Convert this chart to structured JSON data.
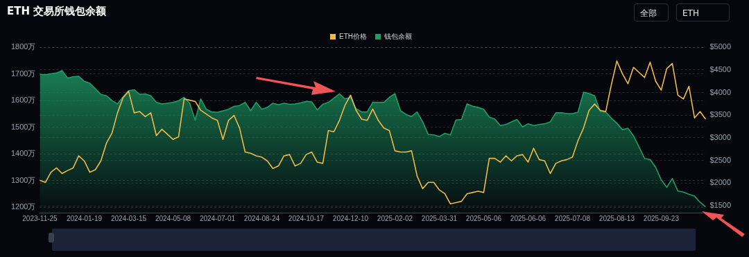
{
  "chart_data": {
    "type": "area",
    "title": "ETH 交易所钱包余额",
    "annotations": [
      "全部",
      "ETH"
    ],
    "categories": [
      "2023-11-25",
      null,
      null,
      null,
      null,
      null,
      null,
      null,
      "2024-01-19",
      null,
      null,
      null,
      null,
      null,
      null,
      null,
      "2024-03-15",
      null,
      null,
      null,
      null,
      null,
      null,
      null,
      "2024-05-08",
      null,
      null,
      null,
      null,
      null,
      null,
      null,
      "2024-07-01",
      null,
      null,
      null,
      null,
      null,
      null,
      null,
      "2024-08-24",
      null,
      null,
      null,
      null,
      null,
      null,
      null,
      "2024-10-17",
      null,
      null,
      null,
      null,
      null,
      null,
      null,
      "2024-12-10",
      null,
      null,
      null,
      null,
      null,
      null,
      null,
      "2025-02-02",
      null,
      null,
      null,
      null,
      null,
      null,
      null,
      "2025-03-31",
      null,
      null,
      null,
      null,
      null,
      null,
      null,
      "2025-05-06",
      null,
      null,
      null,
      null,
      null,
      null,
      null,
      "2025-06-06",
      null,
      null,
      null,
      null,
      null,
      null,
      null,
      "2025-07-08",
      null,
      null,
      null,
      null,
      null,
      null,
      null,
      "2025-08-13",
      null,
      null,
      null,
      null,
      null,
      null,
      null,
      "2025-09-23",
      null,
      null,
      null,
      null,
      null,
      null,
      null,
      null
    ],
    "series": [
      {
        "name": "ETH价格",
        "type": "line",
        "axis": "y2",
        "color": "#f0ba45",
        "values": [
          2063,
          2018,
          2241,
          2336,
          2213,
          2280,
          2336,
          2603,
          2492,
          2241,
          2297,
          2492,
          2882,
          3105,
          3551,
          3885,
          4025,
          3551,
          3579,
          3467,
          3551,
          3049,
          3188,
          3077,
          2966,
          3021,
          3857,
          3830,
          3802,
          3607,
          3523,
          3439,
          3384,
          2966,
          3384,
          3495,
          3216,
          2687,
          2659,
          2603,
          2575,
          2492,
          2325,
          2380,
          2603,
          2631,
          2380,
          2436,
          2631,
          2687,
          2464,
          2436,
          3161,
          3133,
          3384,
          3718,
          3941,
          3607,
          3411,
          3384,
          3634,
          3384,
          3216,
          3161,
          2715,
          2687,
          2687,
          2715,
          2157,
          1879,
          2018,
          2018,
          1851,
          1767,
          1544,
          1572,
          1600,
          1767,
          1795,
          1823,
          1795,
          2547,
          2547,
          2464,
          2603,
          2492,
          2603,
          2631,
          2464,
          2770,
          2520,
          2492,
          2213,
          2436,
          2492,
          2520,
          2575,
          2938,
          3216,
          3607,
          3746,
          3607,
          3579,
          4164,
          4693,
          4415,
          4192,
          4554,
          4443,
          4331,
          4666,
          4248,
          4052,
          4526,
          4638,
          3941,
          3857,
          4136,
          3439,
          3579,
          3411
        ]
      },
      {
        "name": "钱包余额",
        "color": "#1e9e66",
        "values": [
          1698,
          1697,
          1700,
          1703,
          1712,
          1684,
          1689,
          1691,
          1672,
          1665,
          1644,
          1623,
          1618,
          1600,
          1587,
          1614,
          1637,
          1640,
          1623,
          1625,
          1618,
          1593,
          1587,
          1590,
          1593,
          1599,
          1612,
          1590,
          1526,
          1606,
          1567,
          1557,
          1556,
          1561,
          1567,
          1578,
          1581,
          1593,
          1562,
          1593,
          1567,
          1574,
          1590,
          1584,
          1590,
          1586,
          1587,
          1591,
          1597,
          1595,
          1565,
          1586,
          1593,
          1609,
          1625,
          1606,
          1612,
          1569,
          1557,
          1557,
          1593,
          1593,
          1593,
          1612,
          1626,
          1562,
          1548,
          1540,
          1557,
          1520,
          1473,
          1471,
          1465,
          1477,
          1471,
          1527,
          1529,
          1587,
          1579,
          1574,
          1567,
          1538,
          1531,
          1506,
          1510,
          1520,
          1529,
          1501,
          1513,
          1506,
          1510,
          1513,
          1520,
          1554,
          1554,
          1551,
          1551,
          1556,
          1631,
          1626,
          1618,
          1559,
          1557,
          1534,
          1515,
          1491,
          1496,
          1468,
          1426,
          1383,
          1379,
          1350,
          1303,
          1275,
          1308,
          1261,
          1257,
          1249,
          1242,
          1219,
          1202
        ]
      }
    ],
    "ylim": [
      1180,
      1800
    ],
    "yticks": [
      {
        "value": 1200,
        "label": "1200万"
      },
      {
        "value": 1300,
        "label": "1300万"
      },
      {
        "value": 1400,
        "label": "1400万"
      },
      {
        "value": 1500,
        "label": "1500万"
      },
      {
        "value": 1600,
        "label": "1600万"
      },
      {
        "value": 1700,
        "label": "1700万"
      },
      {
        "value": 1800,
        "label": "1800万"
      }
    ],
    "y2lim": [
      1350,
      5000
    ],
    "y2ticks": [
      {
        "value": 1500,
        "label": "$1500"
      },
      {
        "value": 2000,
        "label": "$2000"
      },
      {
        "value": 2500,
        "label": "$2500"
      },
      {
        "value": 3000,
        "label": "$3000"
      },
      {
        "value": 3500,
        "label": "$3500"
      },
      {
        "value": 4000,
        "label": "$4000"
      },
      {
        "value": 4500,
        "label": "$4500"
      },
      {
        "value": 5000,
        "label": "$5000"
      }
    ],
    "grid": "y",
    "legend": "top",
    "marker": "none",
    "line_style": "solid"
  }
}
